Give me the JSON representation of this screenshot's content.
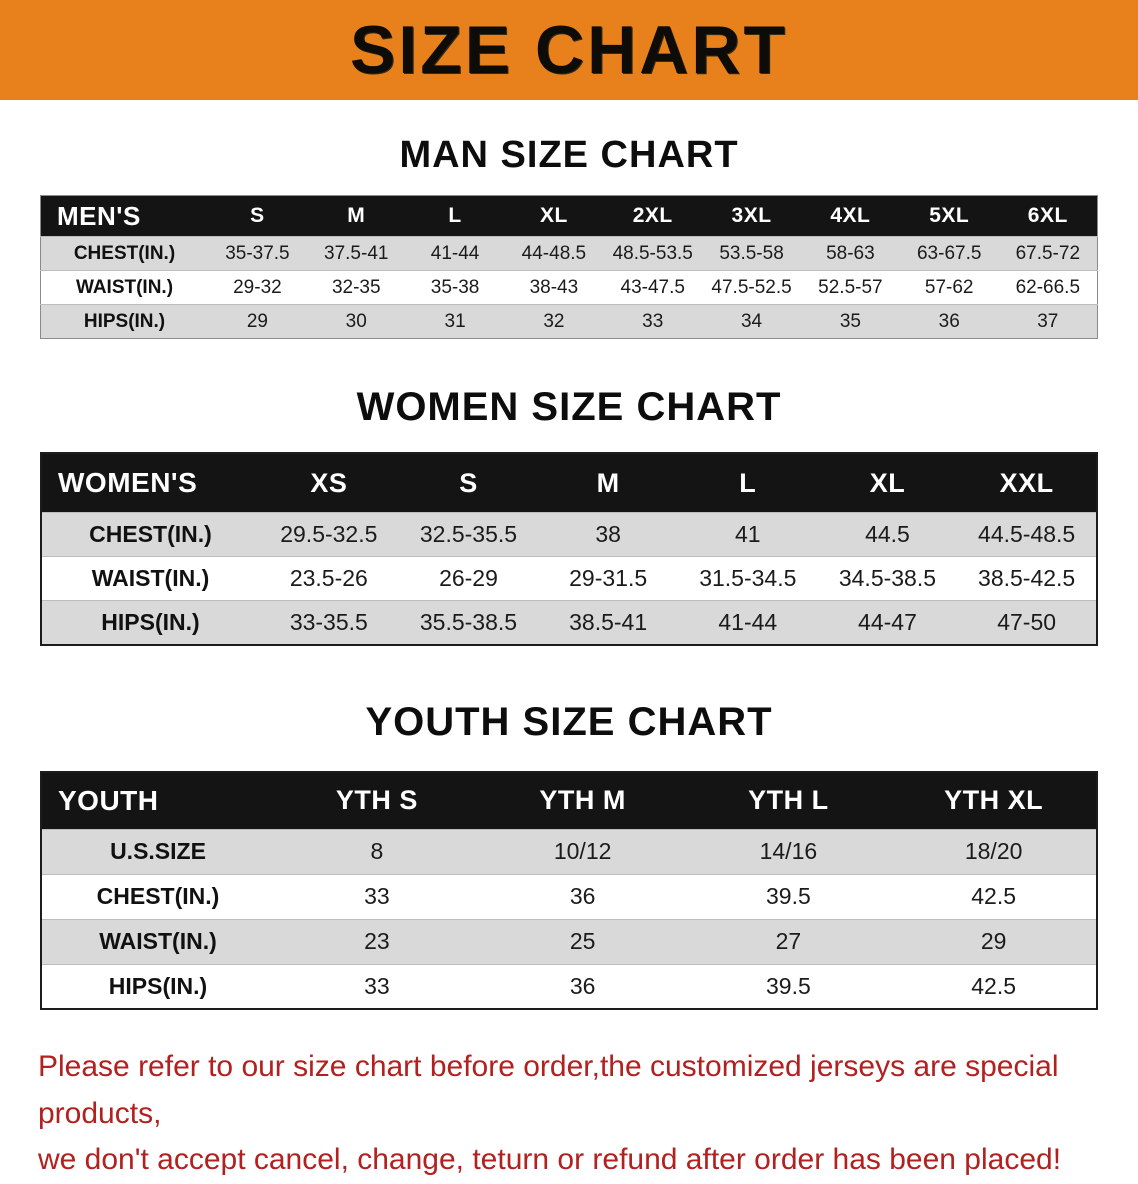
{
  "banner": {
    "title": "SIZE CHART",
    "bg_color": "#e8811c",
    "text_color": "#0e0c09"
  },
  "chart_data": [
    {
      "type": "table",
      "title": "MAN SIZE CHART",
      "columns": [
        "MEN'S",
        "S",
        "M",
        "L",
        "XL",
        "2XL",
        "3XL",
        "4XL",
        "5XL",
        "6XL"
      ],
      "rows": [
        [
          "CHEST(IN.)",
          "35-37.5",
          "37.5-41",
          "41-44",
          "44-48.5",
          "48.5-53.5",
          "53.5-58",
          "58-63",
          "63-67.5",
          "67.5-72"
        ],
        [
          "WAIST(IN.)",
          "29-32",
          "32-35",
          "35-38",
          "38-43",
          "43-47.5",
          "47.5-52.5",
          "52.5-57",
          "57-62",
          "62-66.5"
        ],
        [
          "HIPS(IN.)",
          "29",
          "30",
          "31",
          "32",
          "33",
          "34",
          "35",
          "36",
          "37"
        ]
      ]
    },
    {
      "type": "table",
      "title": "WOMEN SIZE CHART",
      "columns": [
        "WOMEN'S",
        "XS",
        "S",
        "M",
        "L",
        "XL",
        "XXL"
      ],
      "rows": [
        [
          "CHEST(IN.)",
          "29.5-32.5",
          "32.5-35.5",
          "38",
          "41",
          "44.5",
          "44.5-48.5"
        ],
        [
          "WAIST(IN.)",
          "23.5-26",
          "26-29",
          "29-31.5",
          "31.5-34.5",
          "34.5-38.5",
          "38.5-42.5"
        ],
        [
          "HIPS(IN.)",
          "33-35.5",
          "35.5-38.5",
          "38.5-41",
          "41-44",
          "44-47",
          "47-50"
        ]
      ]
    },
    {
      "type": "table",
      "title": "YOUTH SIZE CHART",
      "columns": [
        "YOUTH",
        "YTH S",
        "YTH M",
        "YTH L",
        "YTH XL"
      ],
      "rows": [
        [
          "U.S.SIZE",
          "8",
          "10/12",
          "14/16",
          "18/20"
        ],
        [
          "CHEST(IN.)",
          "33",
          "36",
          "39.5",
          "42.5"
        ],
        [
          "WAIST(IN.)",
          "23",
          "25",
          "27",
          "29"
        ],
        [
          "HIPS(IN.)",
          "33",
          "36",
          "39.5",
          "42.5"
        ]
      ]
    }
  ],
  "footer": {
    "line1": "Please refer to our size chart before order,the customized jerseys are special products,",
    "line2": "we don't accept cancel, change, teturn or refund after order has been placed!",
    "text_color": "#b2201f"
  }
}
